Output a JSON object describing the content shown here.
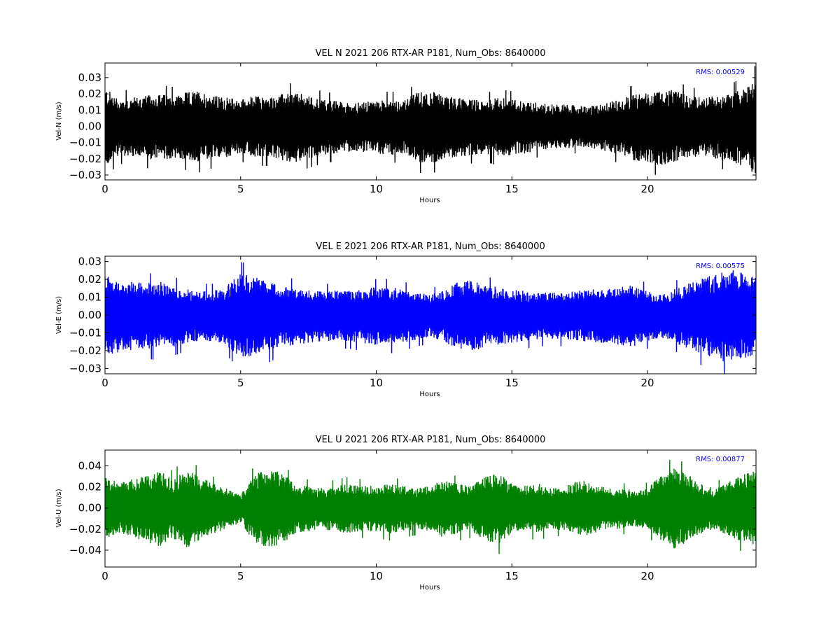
{
  "chart_data": [
    {
      "type": "line",
      "title": "VEL N 2021 206 RTX-AR  P181, Num_Obs: 8640000",
      "xlabel": "Hours",
      "ylabel": "Vel-N (m/s)",
      "xlim": [
        0,
        24
      ],
      "ylim": [
        -0.033,
        0.039
      ],
      "xticks": [
        0,
        5,
        10,
        15,
        20
      ],
      "xtick_labels": [
        "0",
        "5",
        "10",
        "15",
        "20"
      ],
      "yticks": [
        -0.03,
        -0.02,
        -0.01,
        0.0,
        0.01,
        0.02,
        0.03
      ],
      "ytick_labels": [
        "−0.03",
        "−0.02",
        "−0.01",
        "0.00",
        "0.01",
        "0.02",
        "0.03"
      ],
      "annotation": "RMS:  0.00529",
      "annotation_color": "#0000ff",
      "series_color": "#000000",
      "series": [
        {
          "x": [
            0,
            0.5,
            1,
            1.5,
            2,
            2.5,
            3,
            3.5,
            4,
            4.5,
            5,
            5.5,
            6,
            6.5,
            7,
            7.5,
            8,
            8.5,
            9,
            9.5,
            10,
            10.5,
            11,
            11.5,
            12,
            12.5,
            13,
            13.5,
            14,
            14.5,
            15,
            15.5,
            16,
            16.5,
            17,
            17.5,
            18,
            18.5,
            19,
            19.5,
            20,
            20.5,
            21,
            21.5,
            22,
            22.5,
            23,
            23.5,
            24
          ],
          "y_upper": [
            0.023,
            0.016,
            0.017,
            0.018,
            0.019,
            0.018,
            0.02,
            0.021,
            0.018,
            0.017,
            0.016,
            0.018,
            0.017,
            0.019,
            0.02,
            0.018,
            0.016,
            0.015,
            0.014,
            0.014,
            0.015,
            0.016,
            0.015,
            0.02,
            0.021,
            0.018,
            0.017,
            0.016,
            0.015,
            0.017,
            0.016,
            0.015,
            0.014,
            0.013,
            0.013,
            0.012,
            0.012,
            0.014,
            0.016,
            0.019,
            0.02,
            0.022,
            0.021,
            0.018,
            0.017,
            0.018,
            0.019,
            0.022,
            0.028
          ],
          "y_lower": [
            -0.024,
            -0.017,
            -0.018,
            -0.019,
            -0.02,
            -0.019,
            -0.02,
            -0.021,
            -0.019,
            -0.018,
            -0.016,
            -0.018,
            -0.018,
            -0.02,
            -0.021,
            -0.019,
            -0.017,
            -0.016,
            -0.015,
            -0.015,
            -0.016,
            -0.017,
            -0.016,
            -0.021,
            -0.022,
            -0.019,
            -0.018,
            -0.017,
            -0.016,
            -0.018,
            -0.017,
            -0.016,
            -0.014,
            -0.013,
            -0.013,
            -0.012,
            -0.013,
            -0.015,
            -0.017,
            -0.02,
            -0.021,
            -0.023,
            -0.022,
            -0.019,
            -0.018,
            -0.019,
            -0.02,
            -0.024,
            -0.028
          ],
          "y_max": 0.039,
          "y_min": -0.032
        }
      ]
    },
    {
      "type": "line",
      "title": "VEL E 2021 206 RTX-AR  P181, Num_Obs: 8640000",
      "xlabel": "Hours",
      "ylabel": "Vel-E (m/s)",
      "xlim": [
        0,
        24
      ],
      "ylim": [
        -0.033,
        0.033
      ],
      "xticks": [
        0,
        5,
        10,
        15,
        20
      ],
      "xtick_labels": [
        "0",
        "5",
        "10",
        "15",
        "20"
      ],
      "yticks": [
        -0.03,
        -0.02,
        -0.01,
        0.0,
        0.01,
        0.02,
        0.03
      ],
      "ytick_labels": [
        "−0.03",
        "−0.02",
        "−0.01",
        "0.00",
        "0.01",
        "0.02",
        "0.03"
      ],
      "annotation": "RMS:  0.00575",
      "annotation_color": "#0000ff",
      "series_color": "#0000ff",
      "series": [
        {
          "x": [
            0,
            0.5,
            1,
            1.5,
            2,
            2.5,
            3,
            3.5,
            4,
            4.5,
            5,
            5.5,
            6,
            6.5,
            7,
            7.5,
            8,
            8.5,
            9,
            9.5,
            10,
            10.5,
            11,
            11.5,
            12,
            12.5,
            13,
            13.5,
            14,
            14.5,
            15,
            15.5,
            16,
            16.5,
            17,
            17.5,
            18,
            18.5,
            19,
            19.5,
            20,
            20.5,
            21,
            21.5,
            22,
            22.5,
            23,
            23.5,
            24
          ],
          "y_upper": [
            0.021,
            0.019,
            0.018,
            0.017,
            0.018,
            0.016,
            0.014,
            0.013,
            0.013,
            0.016,
            0.022,
            0.021,
            0.019,
            0.016,
            0.015,
            0.014,
            0.013,
            0.013,
            0.013,
            0.014,
            0.015,
            0.015,
            0.014,
            0.012,
            0.011,
            0.013,
            0.018,
            0.019,
            0.016,
            0.015,
            0.014,
            0.013,
            0.012,
            0.012,
            0.012,
            0.013,
            0.014,
            0.014,
            0.015,
            0.016,
            0.013,
            0.011,
            0.014,
            0.017,
            0.02,
            0.022,
            0.025,
            0.023,
            0.02
          ],
          "y_lower": [
            -0.022,
            -0.02,
            -0.019,
            -0.018,
            -0.019,
            -0.017,
            -0.015,
            -0.014,
            -0.014,
            -0.017,
            -0.023,
            -0.022,
            -0.02,
            -0.017,
            -0.016,
            -0.015,
            -0.014,
            -0.014,
            -0.014,
            -0.015,
            -0.016,
            -0.016,
            -0.015,
            -0.013,
            -0.012,
            -0.014,
            -0.019,
            -0.02,
            -0.017,
            -0.016,
            -0.015,
            -0.014,
            -0.013,
            -0.013,
            -0.013,
            -0.014,
            -0.015,
            -0.015,
            -0.016,
            -0.017,
            -0.014,
            -0.012,
            -0.015,
            -0.018,
            -0.021,
            -0.023,
            -0.026,
            -0.024,
            -0.021
          ],
          "y_max": 0.033,
          "y_min": -0.033
        }
      ]
    },
    {
      "type": "line",
      "title": "VEL U 2021 206 RTX-AR  P181, Num_Obs: 8640000",
      "xlabel": "Hours",
      "ylabel": "Vel-U (m/s)",
      "xlim": [
        0,
        24
      ],
      "ylim": [
        -0.056,
        0.055
      ],
      "xticks": [
        0,
        5,
        10,
        15,
        20
      ],
      "xtick_labels": [
        "0",
        "5",
        "10",
        "15",
        "20"
      ],
      "yticks": [
        -0.04,
        -0.02,
        0.0,
        0.02,
        0.04
      ],
      "ytick_labels": [
        "−0.04",
        "−0.02",
        "0.00",
        "0.02",
        "0.04"
      ],
      "annotation": "RMS:  0.00877",
      "annotation_color": "#0000ff",
      "series_color": "#008000",
      "series": [
        {
          "x": [
            0,
            0.5,
            1,
            1.5,
            2,
            2.5,
            3,
            3.5,
            4,
            4.5,
            5,
            5.5,
            6,
            6.5,
            7,
            7.5,
            8,
            8.5,
            9,
            9.5,
            10,
            10.5,
            11,
            11.5,
            12,
            12.5,
            13,
            13.5,
            14,
            14.5,
            15,
            15.5,
            16,
            16.5,
            17,
            17.5,
            18,
            18.5,
            19,
            19.5,
            20,
            20.5,
            21,
            21.5,
            22,
            22.5,
            23,
            23.5,
            24
          ],
          "y_upper": [
            0.03,
            0.022,
            0.026,
            0.03,
            0.034,
            0.026,
            0.036,
            0.028,
            0.022,
            0.018,
            0.012,
            0.03,
            0.036,
            0.032,
            0.022,
            0.02,
            0.018,
            0.02,
            0.022,
            0.02,
            0.02,
            0.022,
            0.02,
            0.018,
            0.02,
            0.026,
            0.022,
            0.02,
            0.028,
            0.032,
            0.022,
            0.02,
            0.022,
            0.018,
            0.02,
            0.026,
            0.022,
            0.018,
            0.018,
            0.016,
            0.018,
            0.03,
            0.036,
            0.03,
            0.022,
            0.018,
            0.024,
            0.03,
            0.034
          ],
          "y_lower": [
            -0.031,
            -0.023,
            -0.027,
            -0.031,
            -0.035,
            -0.027,
            -0.037,
            -0.029,
            -0.023,
            -0.019,
            -0.013,
            -0.031,
            -0.037,
            -0.033,
            -0.023,
            -0.021,
            -0.019,
            -0.021,
            -0.023,
            -0.021,
            -0.021,
            -0.023,
            -0.021,
            -0.019,
            -0.021,
            -0.027,
            -0.023,
            -0.021,
            -0.029,
            -0.033,
            -0.023,
            -0.021,
            -0.023,
            -0.019,
            -0.021,
            -0.027,
            -0.023,
            -0.019,
            -0.019,
            -0.017,
            -0.019,
            -0.031,
            -0.037,
            -0.031,
            -0.023,
            -0.019,
            -0.025,
            -0.031,
            -0.035
          ],
          "y_max": 0.055,
          "y_min": -0.056
        }
      ]
    }
  ]
}
